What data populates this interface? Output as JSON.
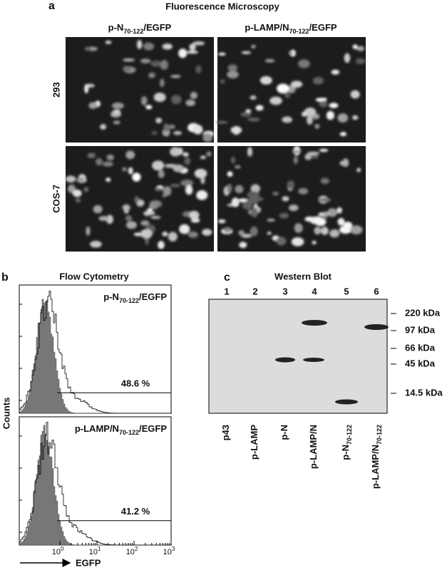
{
  "panel_a": {
    "letter": "a",
    "title": "Fluorescence Microscopy",
    "columns": [
      {
        "prefix": "p-N",
        "sub": "70-122",
        "suffix": "/EGFP"
      },
      {
        "prefix": "p-LAMP/N",
        "sub": "70-122",
        "suffix": "/EGFP"
      }
    ],
    "rows": [
      "293",
      "COS-7"
    ]
  },
  "panel_b": {
    "letter": "b",
    "title": "Flow Cytometry",
    "y_label": "Counts",
    "x_label": "EGFP",
    "histograms": [
      {
        "label": {
          "prefix": "p-N",
          "sub": "70-122",
          "suffix": "/EGFP"
        },
        "percent": "48.6 %"
      },
      {
        "label": {
          "prefix": "p-LAMP/N",
          "sub": "70-122",
          "suffix": "/EGFP"
        },
        "percent": "41.2 %"
      }
    ],
    "x_ticks": [
      {
        "base": "10",
        "exp": "0"
      },
      {
        "base": "10",
        "exp": "1"
      },
      {
        "base": "10",
        "exp": "2"
      },
      {
        "base": "10",
        "exp": "3"
      }
    ]
  },
  "panel_c": {
    "letter": "c",
    "title": "Western Blot",
    "lanes": [
      {
        "number": "1",
        "label": {
          "prefix": "p43"
        }
      },
      {
        "number": "2",
        "label": {
          "prefix": "p-LAMP"
        }
      },
      {
        "number": "3",
        "label": {
          "prefix": "p-N"
        }
      },
      {
        "number": "4",
        "label": {
          "prefix": "p-LAMP/N"
        }
      },
      {
        "number": "5",
        "label": {
          "prefix": "p-N",
          "sub": "70-122"
        }
      },
      {
        "number": "6",
        "label": {
          "prefix": "p-LAMP/N",
          "sub": "70-122"
        }
      }
    ],
    "markers": [
      "220 kDa",
      "97 kDa",
      "66 kDa",
      "45 kDa",
      "14.5 kDa"
    ]
  }
}
